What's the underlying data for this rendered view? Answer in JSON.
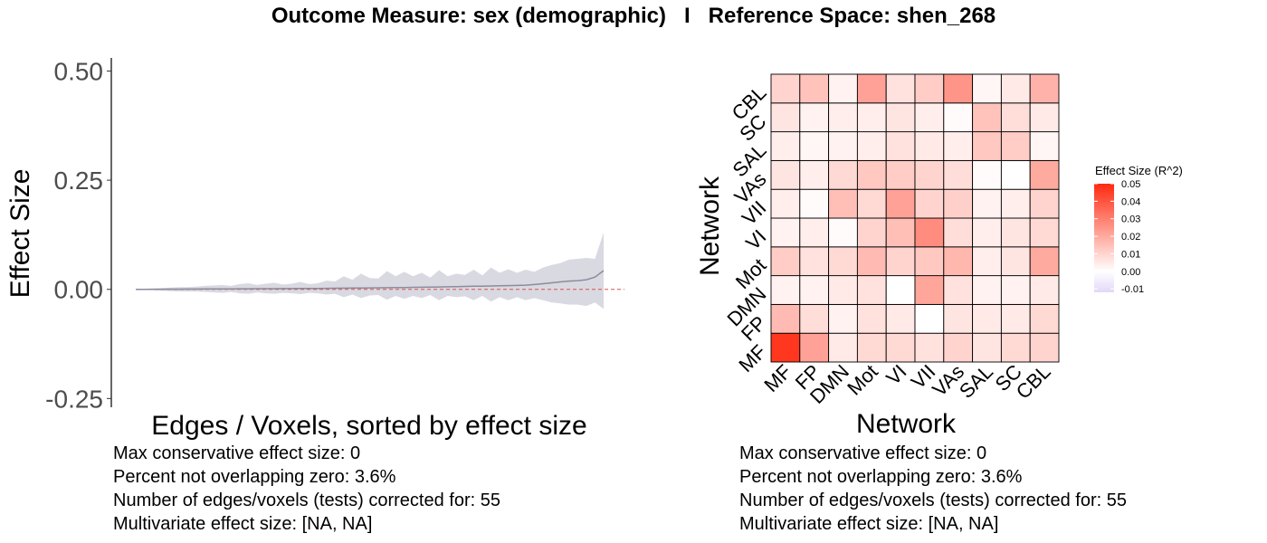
{
  "title": {
    "left": "Outcome Measure: sex (demographic)",
    "separator": "I",
    "right": "Reference Space: shen_268"
  },
  "colors": {
    "ribbon": "#d9d9e2",
    "line": "#8c8c9c",
    "zero_line": "#d9534f",
    "heat_max": "#ff2a10",
    "heat_mid": "#ffffff",
    "heat_min": "#e2d8f8",
    "cell_border": "#000000"
  },
  "chart_data": [
    {
      "type": "area",
      "title": "",
      "xlabel": "Edges / Voxels, sorted by effect size",
      "ylabel": "Effect Size",
      "ylim": [
        -0.27,
        0.53
      ],
      "yticks": [
        0.5,
        0.25,
        0.0,
        -0.25
      ],
      "ytick_labels": [
        "0.50",
        "0.25",
        "0.00",
        "-0.25"
      ],
      "reference_line": 0.0,
      "n_points": 55,
      "series": [
        {
          "estimate": [
            0.0,
            0.0001,
            0.0002,
            0.0003,
            0.0004,
            0.0005,
            0.0006,
            0.0007,
            0.0008,
            0.0009,
            0.001,
            0.0011,
            0.0012,
            0.0013,
            0.0014,
            0.0015,
            0.0016,
            0.0017,
            0.0018,
            0.0019,
            0.002,
            0.0021,
            0.0023,
            0.0025,
            0.0027,
            0.0029,
            0.0031,
            0.0033,
            0.0035,
            0.0037,
            0.004,
            0.0043,
            0.0046,
            0.0049,
            0.0052,
            0.0055,
            0.0058,
            0.0062,
            0.0066,
            0.007,
            0.0074,
            0.0078,
            0.0082,
            0.0086,
            0.009,
            0.0095,
            0.011,
            0.013,
            0.015,
            0.017,
            0.019,
            0.02,
            0.022,
            0.028,
            0.043
          ],
          "upper": [
            0.001,
            0.0015,
            0.002,
            0.003,
            0.004,
            0.005,
            0.005,
            0.006,
            0.008,
            0.009,
            0.01,
            0.008,
            0.012,
            0.014,
            0.01,
            0.013,
            0.015,
            0.011,
            0.013,
            0.017,
            0.012,
            0.014,
            0.02,
            0.018,
            0.03,
            0.022,
            0.036,
            0.026,
            0.025,
            0.042,
            0.03,
            0.04,
            0.03,
            0.038,
            0.027,
            0.044,
            0.03,
            0.036,
            0.033,
            0.045,
            0.032,
            0.05,
            0.038,
            0.046,
            0.038,
            0.045,
            0.04,
            0.05,
            0.056,
            0.06,
            0.068,
            0.07,
            0.072,
            0.07,
            0.13
          ],
          "lower": [
            -0.001,
            -0.0015,
            -0.002,
            -0.003,
            -0.004,
            -0.005,
            -0.005,
            -0.005,
            -0.006,
            -0.007,
            -0.008,
            -0.006,
            -0.009,
            -0.01,
            -0.007,
            -0.009,
            -0.01,
            -0.008,
            -0.009,
            -0.011,
            -0.008,
            -0.009,
            -0.012,
            -0.01,
            -0.018,
            -0.012,
            -0.02,
            -0.014,
            -0.013,
            -0.024,
            -0.015,
            -0.022,
            -0.015,
            -0.02,
            -0.013,
            -0.025,
            -0.015,
            -0.018,
            -0.016,
            -0.025,
            -0.015,
            -0.028,
            -0.018,
            -0.025,
            -0.018,
            -0.025,
            -0.02,
            -0.025,
            -0.03,
            -0.032,
            -0.035,
            -0.035,
            -0.038,
            -0.03,
            -0.045
          ]
        }
      ],
      "stats": [
        "Max conservative effect size: 0",
        "Percent not overlapping zero: 3.6%",
        "Number of edges/voxels (tests) corrected for: 55",
        "Multivariate effect size:  [NA, NA]"
      ]
    },
    {
      "type": "heatmap",
      "title": "",
      "xlabel": "Network",
      "ylabel": "Network",
      "categories": [
        "MF",
        "FP",
        "DMN",
        "Mot",
        "VI",
        "VII",
        "VAs",
        "SAL",
        "SC",
        "CBL"
      ],
      "legend_title": "Effect Size (R^2)",
      "legend_ticks": [
        0.05,
        0.04,
        0.03,
        0.02,
        0.01,
        0.0,
        -0.01
      ],
      "legend_tick_labels": [
        "0.05",
        "0.04",
        "0.03",
        "0.02",
        "0.01",
        "0.00",
        "-0.01"
      ],
      "legend_position": "right",
      "value_range": [
        -0.012,
        0.05
      ],
      "rows_note": "values[row][col]; row 0 = MF (bottom), col 0 = MF (left)",
      "values": [
        [
          0.047,
          0.022,
          0.005,
          0.009,
          0.009,
          0.007,
          0.01,
          0.006,
          0.009,
          0.01
        ],
        [
          0.016,
          0.008,
          0.003,
          0.007,
          0.005,
          0.0,
          0.006,
          0.005,
          0.005,
          0.009
        ],
        [
          0.003,
          0.003,
          0.005,
          0.007,
          0.0,
          0.021,
          0.007,
          0.003,
          0.003,
          0.005
        ],
        [
          0.012,
          0.007,
          0.009,
          0.016,
          0.01,
          0.013,
          0.017,
          0.004,
          0.006,
          0.02
        ],
        [
          0.003,
          0.004,
          0.001,
          0.01,
          0.015,
          0.027,
          0.008,
          0.004,
          0.006,
          0.009
        ],
        [
          0.004,
          0.001,
          0.015,
          0.009,
          0.022,
          0.01,
          0.011,
          0.003,
          0.004,
          0.01
        ],
        [
          0.006,
          0.004,
          0.009,
          0.013,
          0.012,
          0.01,
          0.008,
          0.001,
          0.0,
          0.02
        ],
        [
          0.004,
          0.002,
          0.003,
          0.004,
          0.007,
          0.005,
          0.004,
          0.013,
          0.012,
          0.002
        ],
        [
          0.006,
          0.003,
          0.004,
          0.004,
          0.006,
          0.004,
          0.001,
          0.014,
          0.008,
          0.005
        ],
        [
          0.01,
          0.014,
          0.003,
          0.022,
          0.007,
          0.012,
          0.025,
          0.002,
          0.005,
          0.018
        ]
      ],
      "stats": [
        "Max conservative effect size: 0",
        "Percent not overlapping zero: 3.6%",
        "Number of edges/voxels (tests) corrected for: 55",
        "Multivariate effect size:  [NA, NA]"
      ]
    }
  ]
}
